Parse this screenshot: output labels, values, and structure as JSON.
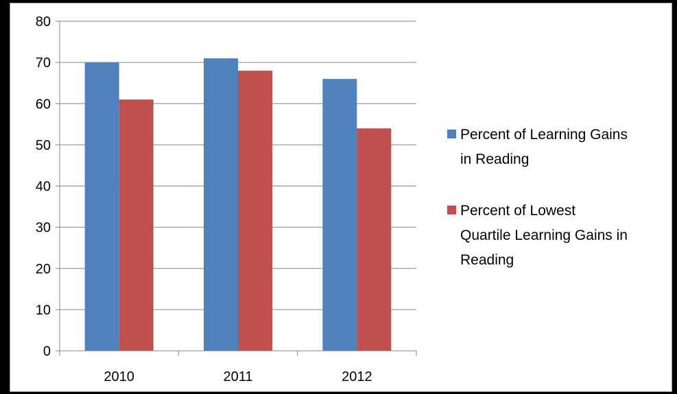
{
  "chart_data": {
    "type": "bar",
    "title": "",
    "xlabel": "",
    "ylabel": "",
    "categories": [
      "2010",
      "2011",
      "2012"
    ],
    "series": [
      {
        "name": "Percent of Learning Gains in Reading",
        "legend_lines": [
          "Percent of Learning Gains",
          "in Reading"
        ],
        "color": "#4f81bd",
        "values": [
          70,
          71,
          66
        ]
      },
      {
        "name": "Percent of Lowest Quartile Learning Gains in Reading",
        "legend_lines": [
          "Percent of Lowest",
          "Quartile Learning Gains in",
          "Reading"
        ],
        "color": "#c0504d",
        "values": [
          61,
          68,
          54
        ]
      }
    ],
    "ylim": [
      0,
      80
    ],
    "yticks": [
      0,
      10,
      20,
      30,
      40,
      50,
      60,
      70,
      80
    ],
    "grid": true,
    "legend_position": "right",
    "gridline_color": "#868686",
    "axis_color": "#868686"
  }
}
